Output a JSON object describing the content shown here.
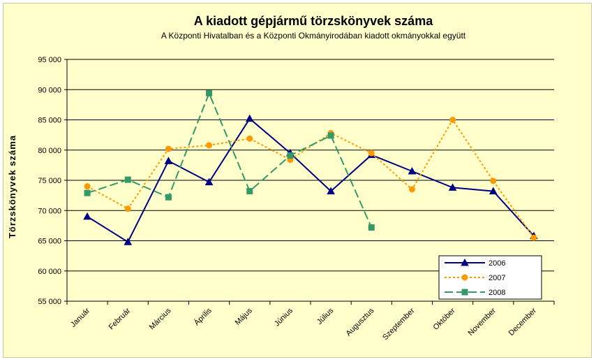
{
  "chart_data": {
    "type": "line",
    "title": "A  kiadott gépjármű  törzskönyvek száma",
    "subtitle": "A Központi Hivatalban és a Központi Okmányirodában kiadott okmányokkal együtt",
    "xlabel": "",
    "ylabel": "Törzskönyvek száma",
    "ylim": [
      55000,
      95000
    ],
    "y_ticks": [
      55000,
      60000,
      65000,
      70000,
      75000,
      80000,
      85000,
      90000,
      95000
    ],
    "y_tick_labels": [
      "55 000",
      "60 000",
      "65 000",
      "70 000",
      "75 000",
      "80 000",
      "85 000",
      "90 000",
      "95 000"
    ],
    "grid": true,
    "legend_position": "bottom-right",
    "categories": [
      "Január",
      "Február",
      "Március",
      "Április",
      "Május",
      "Június",
      "Július",
      "Augusztus",
      "Szeptember",
      "Október",
      "November",
      "December"
    ],
    "series": [
      {
        "name": "2006",
        "color": "#000080",
        "dash": "solid",
        "marker": "triangle",
        "values": [
          69000,
          64800,
          78200,
          74700,
          85200,
          79500,
          73200,
          79200,
          76500,
          73800,
          73200,
          65800
        ]
      },
      {
        "name": "2007",
        "color": "#ff9900",
        "dash": "dotted",
        "marker": "circle",
        "values": [
          74000,
          70300,
          80200,
          80800,
          81900,
          78400,
          82800,
          79500,
          73500,
          85000,
          74900,
          65500
        ]
      },
      {
        "name": "2008",
        "color": "#339966",
        "dash": "dashed",
        "marker": "square",
        "values": [
          72900,
          75100,
          72200,
          89400,
          73200,
          79100,
          82400,
          67200,
          null,
          null,
          null,
          null
        ]
      }
    ]
  }
}
